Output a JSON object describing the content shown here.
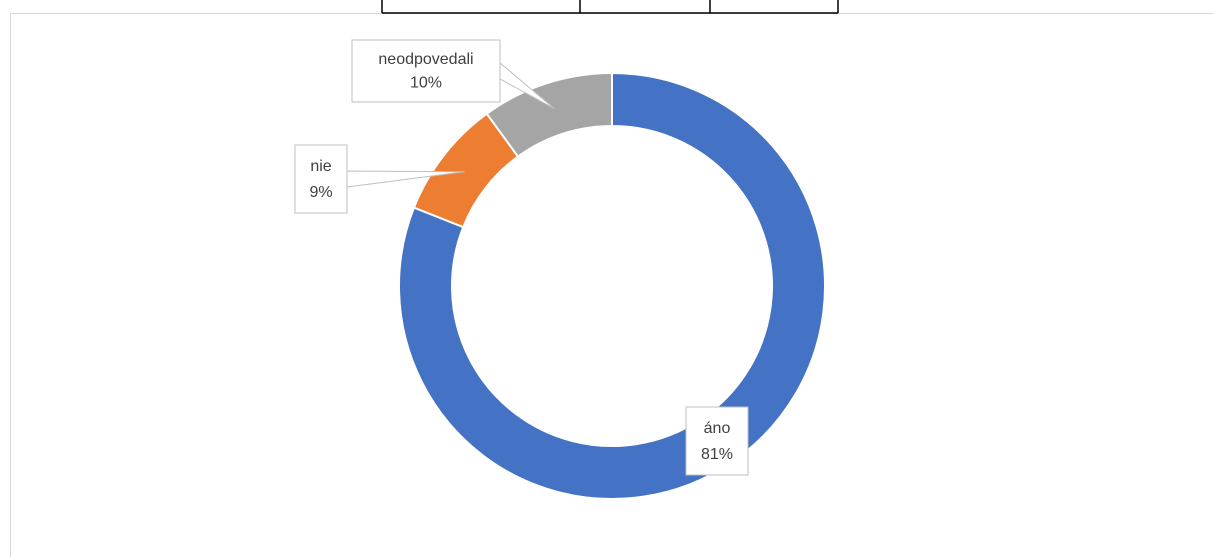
{
  "chart_data": {
    "type": "donut",
    "categories": [
      "áno",
      "nie",
      "neodpovedali"
    ],
    "values": [
      81,
      9,
      10
    ],
    "value_labels": [
      "81%",
      "9%",
      "10%"
    ],
    "colors": [
      "#4472c4",
      "#ed7d31",
      "#a5a5a5"
    ]
  }
}
